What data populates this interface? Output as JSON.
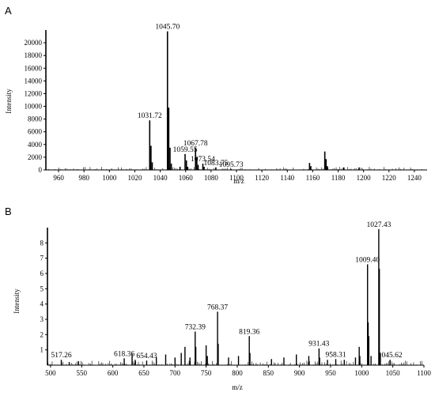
{
  "chart_data": [
    {
      "panel_label": "A",
      "type": "bar",
      "xlabel": "m/z",
      "ylabel": "Intensity",
      "xlim": [
        950,
        1250
      ],
      "ylim": [
        0,
        22000
      ],
      "xticks": [
        960,
        980,
        1000,
        1020,
        1040,
        1060,
        1080,
        1100,
        1120,
        1140,
        1160,
        1180,
        1200,
        1220,
        1240
      ],
      "yticks": [
        0,
        2000,
        4000,
        6000,
        8000,
        10000,
        12000,
        14000,
        16000,
        18000,
        20000
      ],
      "peaks": [
        {
          "x": 1031.72,
          "y": 7800,
          "label": "1031.72"
        },
        {
          "x": 1032.7,
          "y": 3800
        },
        {
          "x": 1033.7,
          "y": 1200
        },
        {
          "x": 1045.7,
          "y": 21800,
          "label": "1045.70"
        },
        {
          "x": 1046.7,
          "y": 9800
        },
        {
          "x": 1047.7,
          "y": 3500
        },
        {
          "x": 1048.7,
          "y": 1000
        },
        {
          "x": 1055.6,
          "y": 500
        },
        {
          "x": 1059.55,
          "y": 2500,
          "label": "1059.55"
        },
        {
          "x": 1060.6,
          "y": 1500
        },
        {
          "x": 1061.6,
          "y": 500
        },
        {
          "x": 1067.78,
          "y": 3500,
          "label": "1067.78"
        },
        {
          "x": 1068.8,
          "y": 2000
        },
        {
          "x": 1069.8,
          "y": 800
        },
        {
          "x": 1073.54,
          "y": 1000,
          "label": "1073.54"
        },
        {
          "x": 1074.5,
          "y": 500
        },
        {
          "x": 1083.75,
          "y": 400,
          "label": "1083.75"
        },
        {
          "x": 1095.73,
          "y": 150,
          "label": "1095.73"
        },
        {
          "x": 1157.5,
          "y": 1100
        },
        {
          "x": 1158.5,
          "y": 600
        },
        {
          "x": 1169.5,
          "y": 2900
        },
        {
          "x": 1170.5,
          "y": 1700
        },
        {
          "x": 1171.5,
          "y": 600
        },
        {
          "x": 1184.5,
          "y": 400
        },
        {
          "x": 1196.5,
          "y": 400
        }
      ]
    },
    {
      "panel_label": "B",
      "type": "bar",
      "xlabel": "m/z",
      "ylabel": "Intensity",
      "xlim": [
        495,
        1100
      ],
      "ylim": [
        0,
        9
      ],
      "xticks": [
        500,
        550,
        600,
        650,
        700,
        750,
        800,
        850,
        900,
        950,
        1000,
        1050,
        1100
      ],
      "yticks": [
        1,
        2,
        3,
        4,
        5,
        6,
        7,
        8
      ],
      "peaks": [
        {
          "x": 517.26,
          "y": 0.35,
          "label": "517.26"
        },
        {
          "x": 530,
          "y": 0.2
        },
        {
          "x": 545,
          "y": 0.25
        },
        {
          "x": 618.36,
          "y": 0.45,
          "label": "618.36"
        },
        {
          "x": 631,
          "y": 0.75
        },
        {
          "x": 636,
          "y": 0.35
        },
        {
          "x": 654.43,
          "y": 0.3,
          "label": "654.43"
        },
        {
          "x": 670,
          "y": 0.5
        },
        {
          "x": 685,
          "y": 0.7
        },
        {
          "x": 700,
          "y": 0.5
        },
        {
          "x": 710,
          "y": 0.8
        },
        {
          "x": 716,
          "y": 1.2
        },
        {
          "x": 724,
          "y": 0.5
        },
        {
          "x": 732.39,
          "y": 2.2,
          "label": "732.39"
        },
        {
          "x": 733.4,
          "y": 1.2
        },
        {
          "x": 750,
          "y": 1.3
        },
        {
          "x": 752,
          "y": 0.6
        },
        {
          "x": 768.37,
          "y": 3.5,
          "label": "768.37"
        },
        {
          "x": 769.4,
          "y": 1.4
        },
        {
          "x": 786,
          "y": 0.5
        },
        {
          "x": 802,
          "y": 0.6
        },
        {
          "x": 819.36,
          "y": 1.9,
          "label": "819.36"
        },
        {
          "x": 820.4,
          "y": 0.8
        },
        {
          "x": 855,
          "y": 0.4
        },
        {
          "x": 875,
          "y": 0.5
        },
        {
          "x": 895,
          "y": 0.7
        },
        {
          "x": 915,
          "y": 0.6
        },
        {
          "x": 931.43,
          "y": 1.1,
          "label": "931.43"
        },
        {
          "x": 932.4,
          "y": 0.5
        },
        {
          "x": 945,
          "y": 0.35
        },
        {
          "x": 958.31,
          "y": 0.4,
          "label": "958.31"
        },
        {
          "x": 972,
          "y": 0.35
        },
        {
          "x": 990,
          "y": 0.5
        },
        {
          "x": 996,
          "y": 1.2
        },
        {
          "x": 997,
          "y": 0.6
        },
        {
          "x": 1009.4,
          "y": 6.6,
          "label": "1009.40"
        },
        {
          "x": 1010.4,
          "y": 2.8
        },
        {
          "x": 1011.4,
          "y": 1.9
        },
        {
          "x": 1015,
          "y": 0.6
        },
        {
          "x": 1027.43,
          "y": 8.9,
          "label": "1027.43"
        },
        {
          "x": 1028.4,
          "y": 6.3
        },
        {
          "x": 1030,
          "y": 0.8
        },
        {
          "x": 1045.62,
          "y": 0.35,
          "label": "1045.62"
        }
      ]
    }
  ]
}
